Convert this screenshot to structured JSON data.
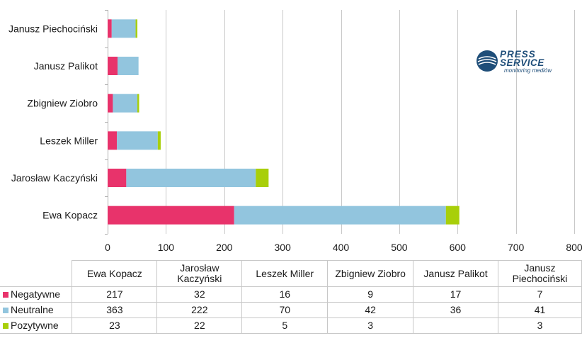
{
  "chart_data": {
    "type": "bar",
    "orientation": "horizontal",
    "stacked": true,
    "categories": [
      "Ewa Kopacz",
      "Jarosław Kaczyński",
      "Leszek Miller",
      "Zbigniew Ziobro",
      "Janusz Palikot",
      "Janusz Piechociński"
    ],
    "series": [
      {
        "name": "Negatywne",
        "color": "#e8336b",
        "values": [
          217,
          32,
          16,
          9,
          17,
          7
        ]
      },
      {
        "name": "Neutralne",
        "color": "#92c5de",
        "values": [
          363,
          222,
          70,
          42,
          36,
          41
        ]
      },
      {
        "name": "Pozytywne",
        "color": "#a8cf0a",
        "values": [
          23,
          22,
          5,
          3,
          null,
          3
        ]
      }
    ],
    "xlim": [
      0,
      800
    ],
    "xticks": [
      0,
      100,
      200,
      300,
      400,
      500,
      600,
      700,
      800
    ],
    "grid": true,
    "legend": "data-table-below"
  },
  "table": {
    "headers": [
      "Ewa Kopacz",
      "Jarosław Kaczyński",
      "Leszek Miller",
      "Zbigniew Ziobro",
      "Janusz Palikot",
      "Janusz Piechociński"
    ]
  },
  "logo": {
    "line1": "PRESS",
    "line2": "SERVICE",
    "tagline": "monitoring mediów"
  },
  "colors": {
    "brand": "#1f4e79"
  }
}
